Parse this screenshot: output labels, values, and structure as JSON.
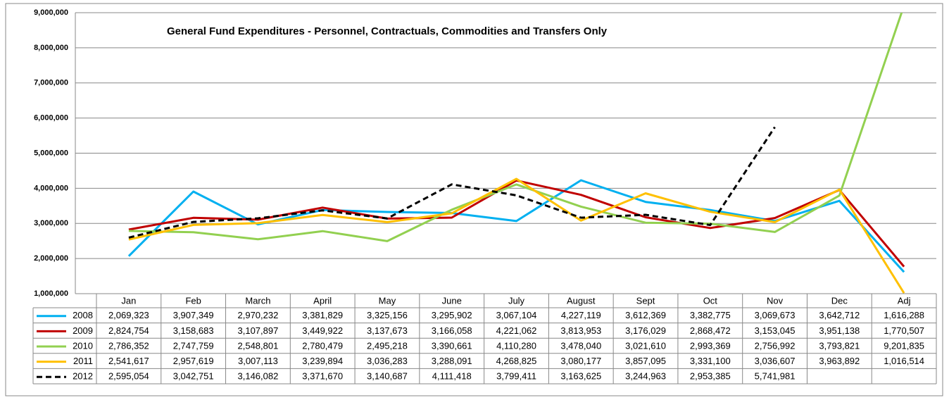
{
  "chart_data": {
    "type": "line",
    "title": "General Fund Expenditures - Personnel,  Contractuals, Commodities  and Transfers Only",
    "categories": [
      "Jan",
      "Feb",
      "March",
      "April",
      "May",
      "June",
      "July",
      "August",
      "Sept",
      "Oct",
      "Nov",
      "Dec",
      "Adj"
    ],
    "series": [
      {
        "name": "2008",
        "color": "#00b0f0",
        "line_style": "solid",
        "values": [
          2069323,
          3907349,
          2970232,
          3381829,
          3325156,
          3295902,
          3067104,
          4227119,
          3612369,
          3382775,
          3069673,
          3642712,
          1616288
        ],
        "value_labels": [
          "2,069,323",
          "3,907,349",
          "2,970,232",
          "3,381,829",
          "3,325,156",
          "3,295,902",
          "3,067,104",
          "4,227,119",
          "3,612,369",
          "3,382,775",
          "3,069,673",
          "3,642,712",
          "1,616,288"
        ]
      },
      {
        "name": "2009",
        "color": "#c00000",
        "line_style": "solid",
        "values": [
          2824754,
          3158683,
          3107897,
          3449922,
          3137673,
          3166058,
          4221062,
          3813953,
          3176029,
          2868472,
          3153045,
          3951138,
          1770507
        ],
        "value_labels": [
          "2,824,754",
          "3,158,683",
          "3,107,897",
          "3,449,922",
          "3,137,673",
          "3,166,058",
          "4,221,062",
          "3,813,953",
          "3,176,029",
          "2,868,472",
          "3,153,045",
          "3,951,138",
          "1,770,507"
        ]
      },
      {
        "name": "2010",
        "color": "#92d050",
        "line_style": "solid",
        "values": [
          2786352,
          2747759,
          2548801,
          2780479,
          2495218,
          3390661,
          4110280,
          3478040,
          3021610,
          2993369,
          2756992,
          3793821,
          9201835
        ],
        "value_labels": [
          "2,786,352",
          "2,747,759",
          "2,548,801",
          "2,780,479",
          "2,495,218",
          "3,390,661",
          "4,110,280",
          "3,478,040",
          "3,021,610",
          "2,993,369",
          "2,756,992",
          "3,793,821",
          "9,201,835"
        ]
      },
      {
        "name": "2011",
        "color": "#ffc000",
        "line_style": "solid",
        "values": [
          2541617,
          2957619,
          3007113,
          3239894,
          3036283,
          3288091,
          4268825,
          3080177,
          3857095,
          3331100,
          3036607,
          3963892,
          1016514
        ],
        "value_labels": [
          "2,541,617",
          "2,957,619",
          "3,007,113",
          "3,239,894",
          "3,036,283",
          "3,288,091",
          "4,268,825",
          "3,080,177",
          "3,857,095",
          "3,331,100",
          "3,036,607",
          "3,963,892",
          "1,016,514"
        ]
      },
      {
        "name": "2012",
        "color": "#000000",
        "line_style": "dashed",
        "values": [
          2595054,
          3042751,
          3146082,
          3371670,
          3140687,
          4111418,
          3799411,
          3163625,
          3244963,
          2953385,
          5741981,
          null,
          null
        ],
        "value_labels": [
          "2,595,054",
          "3,042,751",
          "3,146,082",
          "3,371,670",
          "3,140,687",
          "4,111,418",
          "3,799,411",
          "3,163,625",
          "3,244,963",
          "2,953,385",
          "5,741,981",
          null,
          null
        ]
      }
    ],
    "ylim": [
      1000000,
      9000000
    ],
    "yticks": [
      {
        "value": 1000000,
        "label": "1,000,000"
      },
      {
        "value": 2000000,
        "label": "2,000,000"
      },
      {
        "value": 3000000,
        "label": "3,000,000"
      },
      {
        "value": 4000000,
        "label": "4,000,000"
      },
      {
        "value": 5000000,
        "label": "5,000,000"
      },
      {
        "value": 6000000,
        "label": "6,000,000"
      },
      {
        "value": 7000000,
        "label": "7,000,000"
      },
      {
        "value": 8000000,
        "label": "8,000,000"
      },
      {
        "value": 9000000,
        "label": "9,000,000"
      }
    ],
    "grid": true
  }
}
